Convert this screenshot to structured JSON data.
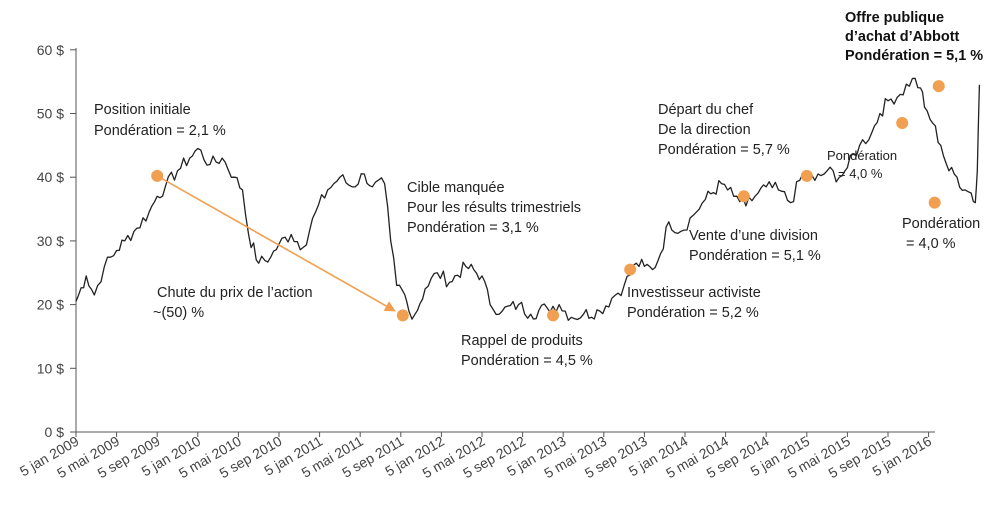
{
  "chart_data": {
    "type": "line",
    "y_ticks": [
      "0 $",
      "10 $",
      "20 $",
      "30 $",
      "40 $",
      "50 $",
      "60 $"
    ],
    "ylim": [
      0,
      60
    ],
    "x_ticks": [
      "5 jan 2009",
      "5 mai 2009",
      "5 sep 2009",
      "5 jan 2010",
      "5 mai 2010",
      "5 sep 2010",
      "5 jan 2011",
      "5 mai 2011",
      "5 sep 2011",
      "5 jan 2012",
      "5 mai 2012",
      "5 sep 2012",
      "5 jan 2013",
      "5 mai 2013",
      "5 sep 2013",
      "5 jan 2014",
      "5 mai 2014",
      "5 sep 2014",
      "5 jan 2015",
      "5 mai 2015",
      "5 sep 2015",
      "5 jan 2016"
    ],
    "line_color": "#222222",
    "marker_color": "#f0a050",
    "arrow_color": "#f0a050",
    "series": [
      {
        "values": [
          [
            0,
            20.5
          ],
          [
            0.25,
            24.5
          ],
          [
            0.45,
            21.5
          ],
          [
            0.7,
            26
          ],
          [
            1.0,
            28.5
          ],
          [
            1.2,
            30
          ],
          [
            1.5,
            32
          ],
          [
            1.8,
            34.5
          ],
          [
            2.0,
            37
          ],
          [
            2.2,
            38.5
          ],
          [
            2.5,
            41
          ],
          [
            2.8,
            43
          ],
          [
            3.0,
            44.5
          ],
          [
            3.3,
            42
          ],
          [
            3.6,
            43
          ],
          [
            3.9,
            40
          ],
          [
            4.1,
            38
          ],
          [
            4.25,
            31
          ],
          [
            4.5,
            26.5
          ],
          [
            4.8,
            27.5
          ],
          [
            5.0,
            29.5
          ],
          [
            5.3,
            31
          ],
          [
            5.6,
            29
          ],
          [
            5.9,
            34.5
          ],
          [
            6.2,
            38
          ],
          [
            6.5,
            40
          ],
          [
            6.8,
            38.5
          ],
          [
            7.1,
            40.5
          ],
          [
            7.3,
            38.5
          ],
          [
            7.6,
            39
          ],
          [
            7.75,
            30
          ],
          [
            7.9,
            23
          ],
          [
            8.1,
            21.5
          ],
          [
            8.2,
            19
          ],
          [
            8.35,
            18.5
          ],
          [
            8.6,
            22.5
          ],
          [
            8.9,
            25
          ],
          [
            9.2,
            23.5
          ],
          [
            9.6,
            26
          ],
          [
            10.0,
            24.5
          ],
          [
            10.2,
            20
          ],
          [
            10.5,
            19
          ],
          [
            10.9,
            20
          ],
          [
            11.2,
            18.5
          ],
          [
            11.6,
            19.5
          ],
          [
            11.9,
            20
          ],
          [
            12.2,
            18
          ],
          [
            12.5,
            18.5
          ],
          [
            12.9,
            19
          ],
          [
            13.2,
            21
          ],
          [
            13.5,
            23
          ],
          [
            13.8,
            26.5
          ],
          [
            14.0,
            26
          ],
          [
            14.2,
            25.5
          ],
          [
            14.4,
            28
          ],
          [
            14.6,
            33
          ],
          [
            14.9,
            31.5
          ],
          [
            15.2,
            34
          ],
          [
            15.5,
            36.5
          ],
          [
            15.9,
            39
          ],
          [
            16.2,
            37
          ],
          [
            16.5,
            35.5
          ],
          [
            16.8,
            37.5
          ],
          [
            17.0,
            38.5
          ],
          [
            17.3,
            38
          ],
          [
            17.6,
            36
          ],
          [
            17.9,
            40.5
          ],
          [
            18.2,
            39.5
          ],
          [
            18.5,
            41
          ],
          [
            18.8,
            40
          ],
          [
            19.0,
            41.5
          ],
          [
            19.3,
            45
          ],
          [
            19.6,
            47
          ],
          [
            19.8,
            50
          ],
          [
            20.0,
            52
          ],
          [
            20.3,
            53
          ],
          [
            20.6,
            55.5
          ],
          [
            20.8,
            54
          ],
          [
            20.9,
            51
          ],
          [
            21.1,
            48.5
          ],
          [
            21.3,
            45
          ],
          [
            21.5,
            41
          ],
          [
            21.7,
            40
          ],
          [
            21.9,
            38
          ],
          [
            22.05,
            37.5
          ],
          [
            22.15,
            36
          ],
          [
            22.2,
            41
          ],
          [
            22.25,
            54.5
          ]
        ]
      }
    ],
    "markers": [
      {
        "x": 2.0,
        "y": 40.2,
        "label": "Position initiale"
      },
      {
        "x": 8.05,
        "y": 18.3,
        "label": "Chute du prix de l’action"
      },
      {
        "x": 11.75,
        "y": 18.3,
        "label": "Rappel de produits"
      },
      {
        "x": 13.65,
        "y": 25.5,
        "label": "Investisseur activiste"
      },
      {
        "x": 16.45,
        "y": 37.0,
        "label": "Vente d’une division"
      },
      {
        "x": 18.0,
        "y": 40.2,
        "label": "Départ du chef"
      },
      {
        "x": 20.35,
        "y": 48.5,
        "label": "Pondération = 4,0 %"
      },
      {
        "x": 21.15,
        "y": 36.0,
        "label": "Pondération = 4,0 %"
      },
      {
        "x": 21.25,
        "y": 54.3,
        "label": "Offre publique"
      }
    ],
    "arrow": {
      "from": [
        2.0,
        40.2
      ],
      "to": [
        8.05,
        18.3
      ]
    },
    "annotations": [
      {
        "lines": [
          "Position initiale",
          "Pondération = 2,1 %"
        ]
      },
      {
        "lines": [
          "Chute du prix de l’action",
          " ~(50) %"
        ]
      },
      {
        "lines": [
          "Cible manquée",
          "Pour les résults trimestriels",
          "Pondération = 3,1 %"
        ]
      },
      {
        "lines": [
          "Rappel de produits",
          "Pondération = 4,5 %"
        ]
      },
      {
        "lines": [
          "Investisseur activiste",
          "Pondération = 5,2 %"
        ]
      },
      {
        "lines": [
          "Vente d’une division",
          "Pondération = 5,1 %"
        ]
      },
      {
        "lines": [
          "Départ du chef",
          "De la direction",
          "Pondération = 5,7 %"
        ]
      },
      {
        "lines": [
          "Pondération",
          "= 4,0 %"
        ]
      },
      {
        "lines": [
          "Pondération",
          "= 4,0 %"
        ]
      },
      {
        "lines": [
          "Offre publique",
          "d’achat d’Abbott",
          "Pondération = 5,1 %"
        ]
      }
    ]
  }
}
